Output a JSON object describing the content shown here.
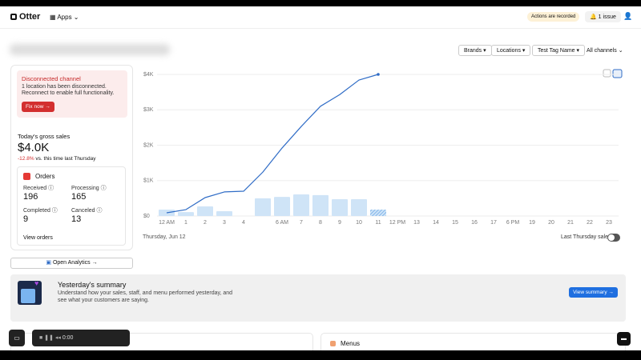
{
  "header": {
    "logo": "Otter",
    "apps": "Apps",
    "recorded": "Actions are recorded",
    "issue": "1 issue"
  },
  "filters": [
    "Brands",
    "Locations",
    "Test Tag Name",
    "All channels"
  ],
  "alert": {
    "title": "Disconnected channel",
    "line1": "1 location has been disconnected.",
    "line2": "Reconnect to enable full functionality.",
    "button": "Fix now"
  },
  "sales": {
    "label": "Today's gross sales",
    "value": "$4.0K",
    "change": "-12.8%",
    "comparison": "vs. this time last Thursday"
  },
  "orders": {
    "title": "Orders",
    "items": [
      {
        "label": "Received",
        "value": "196"
      },
      {
        "label": "Processing",
        "value": "165"
      },
      {
        "label": "Completed",
        "value": "9"
      },
      {
        "label": "Canceled",
        "value": "13"
      }
    ],
    "link": "View orders"
  },
  "analytics_button": "Open Analytics",
  "chart": {
    "type": "bar",
    "categories": [
      "12 AM",
      "1",
      "2",
      "3",
      "4",
      null,
      "6 AM",
      "7",
      "8",
      "9",
      "10",
      "11",
      "12 PM",
      "13",
      "14",
      "15",
      "16",
      "17",
      "6 PM",
      "19",
      "20",
      "21",
      "22",
      "23"
    ],
    "series": [
      {
        "name": "Hourly sales",
        "type": "bar",
        "color": "#cfe4f7",
        "values": [
          180,
          110,
          270,
          135,
          0,
          500,
          540,
          610,
          590,
          475,
          475,
          180,
          null,
          null,
          null,
          null,
          null,
          null,
          null,
          null,
          null,
          null,
          null,
          null
        ]
      },
      {
        "name": "Cumulative sales",
        "type": "line",
        "color": "#2f6cc6",
        "values": [
          90,
          180,
          520,
          680,
          700,
          1240,
          1920,
          2530,
          3100,
          3430,
          3840,
          4000,
          null,
          null,
          null,
          null,
          null,
          null,
          null,
          null,
          null,
          null,
          null,
          null
        ]
      }
    ],
    "ylim": [
      0,
      4000
    ],
    "yticks": [
      {
        "value": 0,
        "label": "$0"
      },
      {
        "value": 1000,
        "label": "$1K"
      },
      {
        "value": 2000,
        "label": "$2K"
      },
      {
        "value": 3000,
        "label": "$3K"
      },
      {
        "value": 4000,
        "label": "$4K"
      }
    ],
    "grid": true,
    "date": "Thursday, Jun 12",
    "toggle": "Last Thursday sales"
  },
  "summary": {
    "title": "Yesterday's summary",
    "line1": "Understand how your sales, staff, and menu performed yesterday, and",
    "line2": "see what your customers are saying.",
    "button": "View summary"
  },
  "menus": "Menus",
  "recorder_time": "0:00"
}
